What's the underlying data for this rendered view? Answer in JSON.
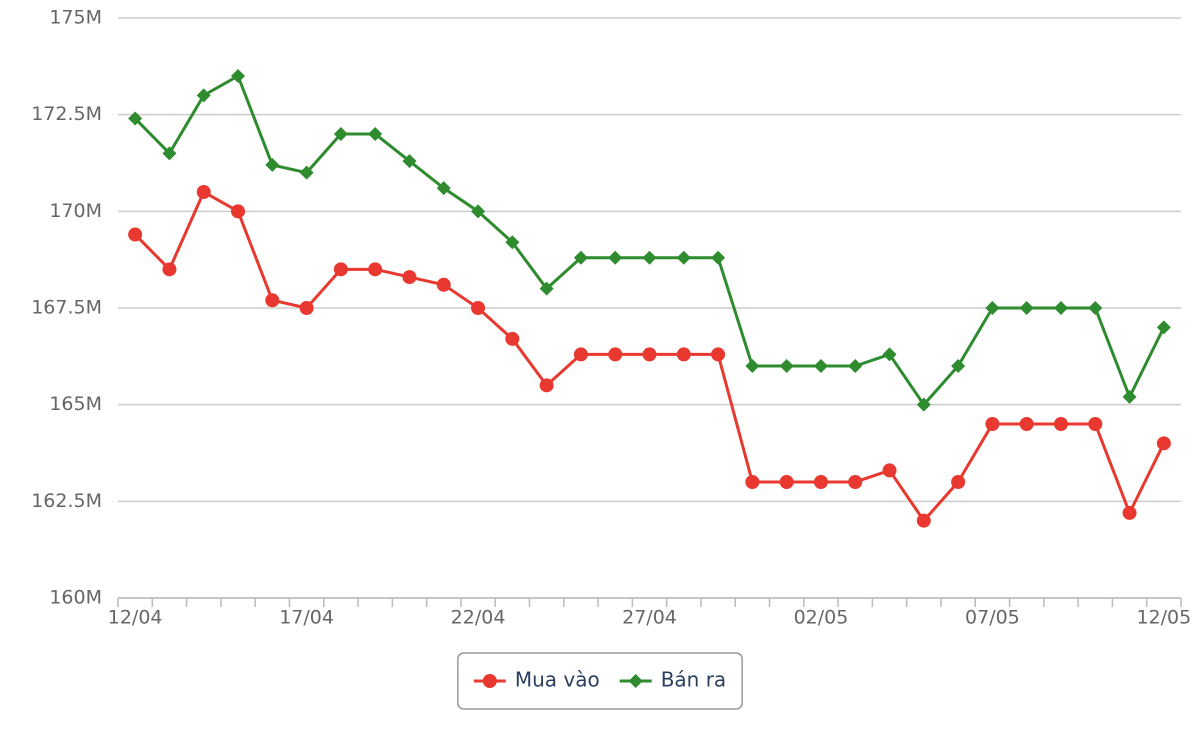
{
  "chart_data": {
    "type": "line",
    "categories": [
      "12/04",
      null,
      null,
      null,
      null,
      "17/04",
      null,
      null,
      null,
      null,
      "22/04",
      null,
      null,
      null,
      null,
      "27/04",
      null,
      null,
      null,
      null,
      "02/05",
      null,
      null,
      null,
      null,
      "07/05",
      null,
      null,
      null,
      null,
      "12/05"
    ],
    "series": [
      {
        "name": "Mua vào",
        "color": "#e8382f",
        "marker": "circle",
        "values": [
          169.4,
          168.5,
          170.5,
          170,
          167.7,
          167.5,
          168.5,
          168.5,
          168.3,
          168.1,
          167.5,
          166.7,
          165.5,
          166.3,
          166.3,
          166.3,
          166.3,
          166.3,
          163,
          163,
          163,
          163,
          163.3,
          162,
          163,
          164.5,
          164.5,
          164.5,
          164.5,
          162.2,
          164
        ]
      },
      {
        "name": "Bán ra",
        "color": "#2e8b2e",
        "marker": "diamond",
        "values": [
          172.4,
          171.5,
          173,
          173.5,
          171.2,
          171,
          172,
          172,
          171.3,
          170.6,
          170,
          169.2,
          168,
          168.8,
          168.8,
          168.8,
          168.8,
          168.8,
          166,
          166,
          166,
          166,
          166.3,
          165,
          166,
          167.5,
          167.5,
          167.5,
          167.5,
          165.2,
          167
        ]
      }
    ],
    "ylim": [
      160,
      175
    ],
    "yticks": [
      {
        "value": 160,
        "label": "160M"
      },
      {
        "value": 162.5,
        "label": "162.5M"
      },
      {
        "value": 165,
        "label": "165M"
      },
      {
        "value": 167.5,
        "label": "167.5M"
      },
      {
        "value": 170,
        "label": "170M"
      },
      {
        "value": 172.5,
        "label": "172.5M"
      },
      {
        "value": 175,
        "label": "175M"
      }
    ],
    "grid": true,
    "legend": "bottom"
  }
}
